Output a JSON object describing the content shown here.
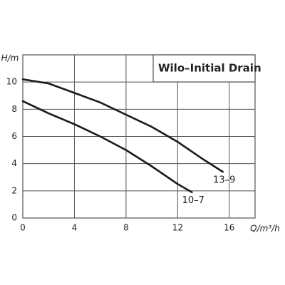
{
  "chart_data": {
    "type": "line",
    "title": "Wilo–Initial Drain",
    "x_label": "Q/m³/h",
    "y_label": "H/m",
    "xlim": [
      0,
      18
    ],
    "ylim": [
      0,
      12
    ],
    "xticks": [
      0,
      4,
      8,
      12,
      16
    ],
    "yticks": [
      0,
      2,
      4,
      6,
      8,
      10
    ],
    "grid": true,
    "series": [
      {
        "name": "13–9",
        "color": "#1a1a1a",
        "x": [
          0,
          2,
          4,
          6,
          8,
          10,
          12,
          14,
          15.5
        ],
        "values": [
          10.2,
          9.9,
          9.2,
          8.5,
          7.6,
          6.7,
          5.6,
          4.3,
          3.4
        ]
      },
      {
        "name": "10–7",
        "color": "#1a1a1a",
        "x": [
          0,
          2,
          4,
          6,
          8,
          10,
          12,
          13.1
        ],
        "values": [
          8.6,
          7.7,
          6.9,
          6.0,
          5.0,
          3.8,
          2.5,
          1.9
        ]
      }
    ]
  }
}
